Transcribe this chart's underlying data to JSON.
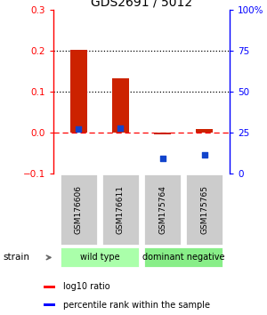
{
  "title": "GDS2691 / 5012",
  "samples": [
    "GSM176606",
    "GSM176611",
    "GSM175764",
    "GSM175765"
  ],
  "log10_ratio": [
    0.202,
    0.132,
    -0.005,
    0.008
  ],
  "percentile_rank": [
    27.0,
    27.5,
    9.0,
    11.3
  ],
  "bar_color": "#cc2200",
  "dot_color": "#1144cc",
  "ylim_left": [
    -0.1,
    0.3
  ],
  "ylim_right": [
    0,
    100
  ],
  "yticks_left": [
    -0.1,
    0.0,
    0.1,
    0.2,
    0.3
  ],
  "yticks_right": [
    0,
    25,
    50,
    75,
    100
  ],
  "ytick_labels_right": [
    "0",
    "25",
    "50",
    "75",
    "100%"
  ],
  "hlines_dotted": [
    0.1,
    0.2
  ],
  "hline_dashdot_color": "red",
  "sample_box_color": "#cccccc",
  "group1_label": "wild type",
  "group1_color": "#aaffaa",
  "group1_indices": [
    0,
    1
  ],
  "group2_label": "dominant negative",
  "group2_color": "#88ee88",
  "group2_indices": [
    2,
    3
  ],
  "strain_label": "strain",
  "legend_red_label": "log10 ratio",
  "legend_blue_label": "percentile rank within the sample",
  "bar_width": 0.4
}
